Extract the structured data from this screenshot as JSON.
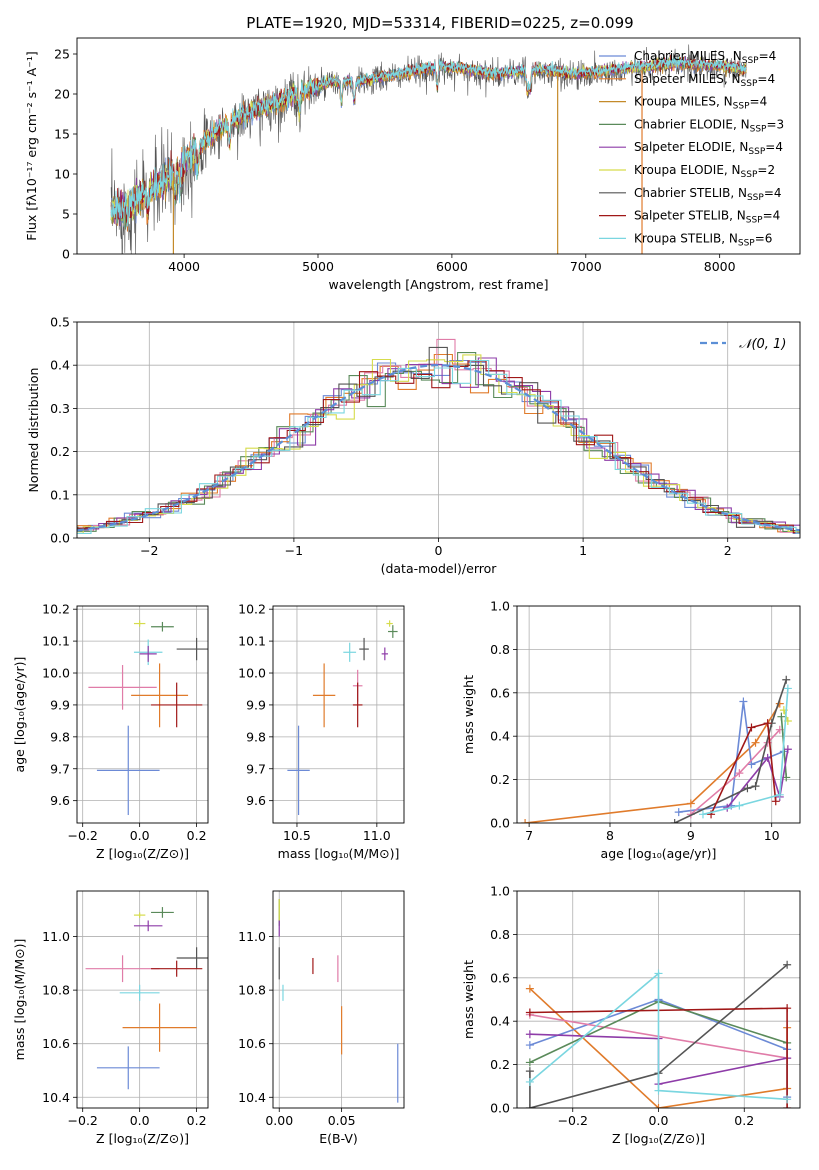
{
  "title": "PLATE=1920, MJD=53314, FIBERID=0225, z=0.099",
  "colors": {
    "Chabrier MILES": "#6c8ad6",
    "Salpeter MILES": "#e07b2b",
    "Kroupa MILES": "#c48a2a",
    "Chabrier ELODIE": "#5a8a5a",
    "Salpeter ELODIE": "#8e3ca8",
    "Kroupa ELODIE": "#d6dc4c",
    "Chabrier STELIB": "#555555",
    "Salpeter STELIB": "#a01818",
    "Kroupa STELIB": "#7ad6e0",
    "pink": "#e07ca8",
    "normal": "#5b8fd6"
  },
  "chart_data": [
    {
      "id": "spectrum",
      "type": "line",
      "title": "PLATE=1920, MJD=53314, FIBERID=0225, z=0.099",
      "xlabel": "wavelength [Angstrom, rest frame]",
      "ylabel": "Flux [fλ10⁻¹⁷ erg cm⁻² s⁻¹ A⁻¹]",
      "xlim": [
        3200,
        8600
      ],
      "ylim": [
        0,
        27
      ],
      "xticks": [
        4000,
        5000,
        6000,
        7000,
        8000
      ],
      "yticks": [
        0,
        5,
        10,
        15,
        20,
        25
      ],
      "legend": "top-right",
      "grid": false,
      "continuum": [
        [
          3450,
          5.5
        ],
        [
          3550,
          5.2
        ],
        [
          3700,
          7.5
        ],
        [
          3900,
          9.8
        ],
        [
          4000,
          11.5
        ],
        [
          4150,
          14
        ],
        [
          4300,
          16
        ],
        [
          4500,
          17.8
        ],
        [
          4700,
          19
        ],
        [
          4900,
          20.5
        ],
        [
          5100,
          21.5
        ],
        [
          5300,
          21.5
        ],
        [
          5500,
          22.2
        ],
        [
          5700,
          22.8
        ],
        [
          5900,
          23.4
        ],
        [
          6100,
          23.2
        ],
        [
          6300,
          22.5
        ],
        [
          6500,
          22.8
        ],
        [
          6700,
          23
        ],
        [
          6900,
          22.5
        ],
        [
          7100,
          22.8
        ],
        [
          7300,
          23.2
        ],
        [
          7500,
          23.5
        ],
        [
          7700,
          23.8
        ],
        [
          8000,
          23.5
        ],
        [
          8200,
          23
        ]
      ],
      "series": [
        {
          "name": "Chabrier MILES, N_SSP=4",
          "label": "Chabrier MILES, N",
          "sub": "SSP",
          "suffix": "=4",
          "color_key": "Chabrier MILES",
          "width": 0.8
        },
        {
          "name": "Salpeter MILES, N_SSP=4",
          "label": "Salpeter MILES, N",
          "sub": "SSP",
          "suffix": "=4",
          "color_key": "Salpeter MILES",
          "width": 0.8
        },
        {
          "name": "Kroupa MILES, N_SSP=4",
          "label": "Kroupa MILES, N",
          "sub": "SSP",
          "suffix": "=4",
          "color_key": "Kroupa MILES",
          "width": 0.8
        },
        {
          "name": "Chabrier ELODIE, N_SSP=3",
          "label": "Chabrier ELODIE, N",
          "sub": "SSP",
          "suffix": "=3",
          "color_key": "Chabrier ELODIE",
          "width": 0.8
        },
        {
          "name": "Salpeter ELODIE, N_SSP=4",
          "label": "Salpeter ELODIE, N",
          "sub": "SSP",
          "suffix": "=4",
          "color_key": "Salpeter ELODIE",
          "width": 0.8
        },
        {
          "name": "Kroupa ELODIE, N_SSP=2",
          "label": "Kroupa ELODIE, N",
          "sub": "SSP",
          "suffix": "=2",
          "color_key": "Kroupa ELODIE",
          "width": 0.8
        },
        {
          "name": "Chabrier STELIB, N_SSP=4",
          "label": "Chabrier STELIB, N",
          "sub": "SSP",
          "suffix": "=4",
          "color_key": "Chabrier STELIB",
          "width": 0.8
        },
        {
          "name": "Salpeter STELIB, N_SSP=4",
          "label": "Salpeter STELIB, N",
          "sub": "SSP",
          "suffix": "=4",
          "color_key": "Salpeter STELIB",
          "width": 0.8
        },
        {
          "name": "Kroupa STELIB, N_SSP=6",
          "label": "Kroupa STELIB, N",
          "sub": "SSP",
          "suffix": "=6",
          "color_key": "Kroupa STELIB",
          "width": 0.8
        }
      ],
      "dropouts": [
        {
          "x": 3920,
          "color_key": "Kroupa MILES"
        },
        {
          "x": 6790,
          "color_key": "Kroupa MILES"
        },
        {
          "x": 7420,
          "color_key": "Salpeter MILES"
        }
      ]
    },
    {
      "id": "residuals",
      "type": "histogram",
      "xlabel": "(data-model)/error",
      "ylabel": "Normed distribution",
      "xlim": [
        -2.5,
        2.5
      ],
      "ylim": [
        0,
        0.5
      ],
      "xticks": [
        -2,
        -1,
        0,
        1,
        2
      ],
      "yticks": [
        0.0,
        0.1,
        0.2,
        0.3,
        0.4,
        0.5
      ],
      "grid": true,
      "legend": "top-right",
      "legend_label": "𝒩(0, 1)",
      "bin_width": 0.125,
      "peak": 0.4,
      "sigma": 1.0,
      "outline_colors": [
        "Chabrier MILES",
        "Salpeter MILES",
        "pink",
        "Chabrier ELODIE",
        "Salpeter ELODIE",
        "Kroupa ELODIE",
        "Chabrier STELIB",
        "Salpeter STELIB",
        "Kroupa STELIB"
      ]
    },
    {
      "id": "age_vs_Z",
      "type": "errorbar",
      "xlabel": "Z [log₁₀(Z/Z⊙)]",
      "ylabel": "age  [log₁₀(age/yr)]",
      "xlim": [
        -0.22,
        0.24
      ],
      "ylim": [
        9.53,
        10.21
      ],
      "xticks": [
        -0.2,
        0.0,
        0.2
      ],
      "xticklabels": [
        "−0.2",
        "0.0",
        "0.2"
      ],
      "yticks": [
        9.6,
        9.7,
        9.8,
        9.9,
        10.0,
        10.1,
        10.2
      ],
      "grid": true,
      "points": [
        {
          "x": 0.08,
          "y": 10.145,
          "xe": 0.04,
          "ye": 0.015,
          "c": "Chabrier ELODIE"
        },
        {
          "x": 0.0,
          "y": 10.155,
          "xe": 0.02,
          "ye": 0.01,
          "c": "Kroupa ELODIE"
        },
        {
          "x": 0.2,
          "y": 10.075,
          "xe": 0.07,
          "ye": 0.035,
          "c": "Chabrier STELIB"
        },
        {
          "x": 0.03,
          "y": 10.065,
          "xe": 0.05,
          "ye": 0.04,
          "c": "Kroupa STELIB"
        },
        {
          "x": 0.03,
          "y": 10.06,
          "xe": 0.03,
          "ye": 0.025,
          "c": "Salpeter ELODIE"
        },
        {
          "x": -0.06,
          "y": 9.955,
          "xe": 0.12,
          "ye": 0.07,
          "c": "pink"
        },
        {
          "x": 0.07,
          "y": 9.93,
          "xe": 0.1,
          "ye": 0.1,
          "c": "Salpeter MILES"
        },
        {
          "x": 0.13,
          "y": 9.9,
          "xe": 0.09,
          "ye": 0.07,
          "c": "Salpeter STELIB"
        },
        {
          "x": -0.04,
          "y": 9.695,
          "xe": 0.11,
          "ye": 0.14,
          "c": "Chabrier MILES"
        }
      ]
    },
    {
      "id": "age_vs_mass",
      "type": "errorbar",
      "xlabel": "mass [log₁₀(M/M⊙)]",
      "ylabel": "",
      "xlim": [
        10.35,
        11.17
      ],
      "ylim": [
        9.53,
        10.21
      ],
      "xticks": [
        10.5,
        11.0
      ],
      "xticklabels": [
        "10.5",
        "11.0"
      ],
      "yticks": [
        9.6,
        9.7,
        9.8,
        9.9,
        10.0,
        10.1,
        10.2
      ],
      "grid": true,
      "points": [
        {
          "x": 11.1,
          "y": 10.13,
          "xe": 0.03,
          "ye": 0.02,
          "c": "Chabrier ELODIE"
        },
        {
          "x": 11.08,
          "y": 10.155,
          "xe": 0.02,
          "ye": 0.01,
          "c": "Kroupa ELODIE"
        },
        {
          "x": 10.92,
          "y": 10.075,
          "xe": 0.03,
          "ye": 0.035,
          "c": "Chabrier STELIB"
        },
        {
          "x": 10.83,
          "y": 10.065,
          "xe": 0.04,
          "ye": 0.03,
          "c": "Kroupa STELIB"
        },
        {
          "x": 11.05,
          "y": 10.06,
          "xe": 0.02,
          "ye": 0.02,
          "c": "Salpeter ELODIE"
        },
        {
          "x": 10.88,
          "y": 9.96,
          "xe": 0.03,
          "ye": 0.05,
          "c": "pink"
        },
        {
          "x": 10.67,
          "y": 9.93,
          "xe": 0.07,
          "ye": 0.1,
          "c": "Salpeter MILES"
        },
        {
          "x": 10.88,
          "y": 9.9,
          "xe": 0.03,
          "ye": 0.07,
          "c": "Salpeter STELIB"
        },
        {
          "x": 10.51,
          "y": 9.695,
          "xe": 0.07,
          "ye": 0.14,
          "c": "Chabrier MILES"
        }
      ]
    },
    {
      "id": "weight_vs_age",
      "type": "line",
      "xlabel": "age  [log₁₀(age/yr)]",
      "ylabel": "mass weight",
      "xlim": [
        6.85,
        10.35
      ],
      "ylim": [
        0,
        1.0
      ],
      "xticks": [
        7,
        8,
        9,
        10
      ],
      "xticklabels": [
        "7",
        "8",
        "9",
        "10"
      ],
      "yticks": [
        0.0,
        0.2,
        0.4,
        0.6,
        0.8,
        1.0
      ],
      "grid": true,
      "series": [
        {
          "c": "Salpeter MILES",
          "pts": [
            [
              6.95,
              0.0
            ],
            [
              9.0,
              0.09
            ],
            [
              9.8,
              0.37
            ],
            [
              10.1,
              0.55
            ]
          ]
        },
        {
          "c": "Chabrier MILES",
          "pts": [
            [
              8.85,
              0.05
            ],
            [
              9.5,
              0.08
            ],
            [
              9.65,
              0.56
            ],
            [
              9.75,
              0.27
            ],
            [
              10.15,
              0.33
            ]
          ]
        },
        {
          "c": "pink",
          "pts": [
            [
              9.0,
              0.04
            ],
            [
              9.6,
              0.23
            ],
            [
              9.95,
              0.37
            ],
            [
              10.1,
              0.43
            ]
          ]
        },
        {
          "c": "Chabrier ELODIE",
          "pts": [
            [
              10.12,
              0.49
            ],
            [
              10.18,
              0.21
            ]
          ]
        },
        {
          "c": "Salpeter ELODIE",
          "pts": [
            [
              9.45,
              0.07
            ],
            [
              9.95,
              0.3
            ],
            [
              10.1,
              0.12
            ],
            [
              10.2,
              0.34
            ]
          ]
        },
        {
          "c": "Kroupa ELODIE",
          "pts": [
            [
              10.15,
              0.52
            ],
            [
              10.2,
              0.47
            ]
          ]
        },
        {
          "c": "Chabrier STELIB",
          "pts": [
            [
              8.8,
              0.0
            ],
            [
              9.7,
              0.16
            ],
            [
              9.8,
              0.17
            ],
            [
              10.0,
              0.46
            ],
            [
              10.18,
              0.66
            ]
          ]
        },
        {
          "c": "Salpeter STELIB",
          "pts": [
            [
              9.25,
              0.04
            ],
            [
              9.75,
              0.44
            ],
            [
              9.95,
              0.46
            ],
            [
              10.05,
              0.1
            ]
          ]
        },
        {
          "c": "Kroupa STELIB",
          "pts": [
            [
              9.15,
              0.04
            ],
            [
              9.6,
              0.08
            ],
            [
              10.1,
              0.13
            ],
            [
              10.2,
              0.62
            ]
          ]
        }
      ]
    },
    {
      "id": "mass_vs_Z",
      "type": "errorbar",
      "xlabel": "Z [log₁₀(Z/Z⊙)]",
      "ylabel": "mass [log₁₀(M/M⊙)]",
      "xlim": [
        -0.22,
        0.24
      ],
      "ylim": [
        10.36,
        11.17
      ],
      "xticks": [
        -0.2,
        0.0,
        0.2
      ],
      "xticklabels": [
        "−0.2",
        "0.0",
        "0.2"
      ],
      "yticks": [
        10.4,
        10.6,
        10.8,
        11.0
      ],
      "grid": true,
      "points": [
        {
          "x": 0.08,
          "y": 11.09,
          "xe": 0.04,
          "ye": 0.02,
          "c": "Chabrier ELODIE"
        },
        {
          "x": 0.0,
          "y": 11.08,
          "xe": 0.02,
          "ye": 0.01,
          "c": "Kroupa ELODIE"
        },
        {
          "x": 0.03,
          "y": 11.04,
          "xe": 0.05,
          "ye": 0.02,
          "c": "Salpeter ELODIE"
        },
        {
          "x": 0.2,
          "y": 10.92,
          "xe": 0.07,
          "ye": 0.04,
          "c": "Chabrier STELIB"
        },
        {
          "x": -0.06,
          "y": 10.88,
          "xe": 0.13,
          "ye": 0.05,
          "c": "pink"
        },
        {
          "x": 0.13,
          "y": 10.88,
          "xe": 0.09,
          "ye": 0.03,
          "c": "Salpeter STELIB"
        },
        {
          "x": 0.0,
          "y": 10.79,
          "xe": 0.07,
          "ye": 0.03,
          "c": "Kroupa STELIB"
        },
        {
          "x": 0.07,
          "y": 10.66,
          "xe": 0.13,
          "ye": 0.09,
          "c": "Salpeter MILES"
        },
        {
          "x": -0.04,
          "y": 10.51,
          "xe": 0.11,
          "ye": 0.08,
          "c": "Chabrier MILES"
        }
      ]
    },
    {
      "id": "mass_vs_ebv",
      "type": "errorbar",
      "xlabel": "E(B-V)",
      "ylabel": "",
      "xlim": [
        -0.005,
        0.1
      ],
      "ylim": [
        10.36,
        11.17
      ],
      "xticks": [
        0.0,
        0.05
      ],
      "xticklabels": [
        "0.00",
        "0.05"
      ],
      "yticks": [
        10.4,
        10.6,
        10.8,
        11.0
      ],
      "grid": true,
      "points": [
        {
          "x": 0.0,
          "y": 11.09,
          "xe": 0.0,
          "ye": 0.05,
          "c": "Chabrier ELODIE"
        },
        {
          "x": 0.0,
          "y": 11.1,
          "xe": 0.0,
          "ye": 0.04,
          "c": "Kroupa ELODIE"
        },
        {
          "x": 0.0,
          "y": 11.03,
          "xe": 0.0,
          "ye": 0.03,
          "c": "Salpeter ELODIE"
        },
        {
          "x": 0.0,
          "y": 10.9,
          "xe": 0.0,
          "ye": 0.06,
          "c": "Chabrier STELIB"
        },
        {
          "x": 0.003,
          "y": 10.79,
          "xe": 0.0,
          "ye": 0.03,
          "c": "Kroupa STELIB"
        },
        {
          "x": 0.027,
          "y": 10.89,
          "xe": 0.0,
          "ye": 0.03,
          "c": "Salpeter STELIB"
        },
        {
          "x": 0.047,
          "y": 10.88,
          "xe": 0.0,
          "ye": 0.05,
          "c": "pink"
        },
        {
          "x": 0.05,
          "y": 10.65,
          "xe": 0.0,
          "ye": 0.09,
          "c": "Salpeter MILES"
        },
        {
          "x": 0.095,
          "y": 10.49,
          "xe": 0.0,
          "ye": 0.11,
          "c": "Chabrier MILES"
        }
      ]
    },
    {
      "id": "weight_vs_Z",
      "type": "line",
      "xlabel": "Z [log₁₀(Z/Z⊙)]",
      "ylabel": "mass weight",
      "xlim": [
        -0.33,
        0.33
      ],
      "ylim": [
        0,
        1.0
      ],
      "xticks": [
        -0.2,
        0.0,
        0.2
      ],
      "xticklabels": [
        "−0.2",
        "0.0",
        "0.2"
      ],
      "yticks": [
        0.0,
        0.2,
        0.4,
        0.6,
        0.8,
        1.0
      ],
      "grid": true,
      "series": [
        {
          "c": "Salpeter MILES",
          "pts": [
            [
              -0.3,
              0.55
            ],
            [
              0.0,
              0.0
            ],
            [
              0.3,
              0.09
            ],
            [
              0.3,
              0.37
            ]
          ]
        },
        {
          "c": "Chabrier MILES",
          "pts": [
            [
              -0.3,
              0.29
            ],
            [
              0.0,
              0.5
            ],
            [
              0.3,
              0.27
            ],
            [
              0.3,
              0.05
            ]
          ]
        },
        {
          "c": "pink",
          "pts": [
            [
              -0.3,
              0.43
            ],
            [
              0.3,
              0.23
            ]
          ]
        },
        {
          "c": "Chabrier ELODIE",
          "pts": [
            [
              -0.3,
              0.21
            ],
            [
              0.0,
              0.49
            ],
            [
              0.3,
              0.3
            ]
          ]
        },
        {
          "c": "Salpeter ELODIE",
          "pts": [
            [
              -0.3,
              0.34
            ],
            [
              0.0,
              0.32
            ],
            [
              0.0,
              0.11
            ],
            [
              0.3,
              0.23
            ]
          ]
        },
        {
          "c": "Chabrier STELIB",
          "pts": [
            [
              -0.3,
              0.17
            ],
            [
              -0.3,
              0.0
            ],
            [
              0.0,
              0.16
            ],
            [
              0.3,
              0.66
            ]
          ]
        },
        {
          "c": "Salpeter STELIB",
          "pts": [
            [
              -0.3,
              0.44
            ],
            [
              0.3,
              0.46
            ],
            [
              0.3,
              0.0
            ]
          ]
        },
        {
          "c": "Kroupa STELIB",
          "pts": [
            [
              -0.3,
              0.12
            ],
            [
              0.0,
              0.62
            ],
            [
              0.0,
              0.08
            ],
            [
              0.3,
              0.04
            ]
          ]
        }
      ]
    }
  ]
}
